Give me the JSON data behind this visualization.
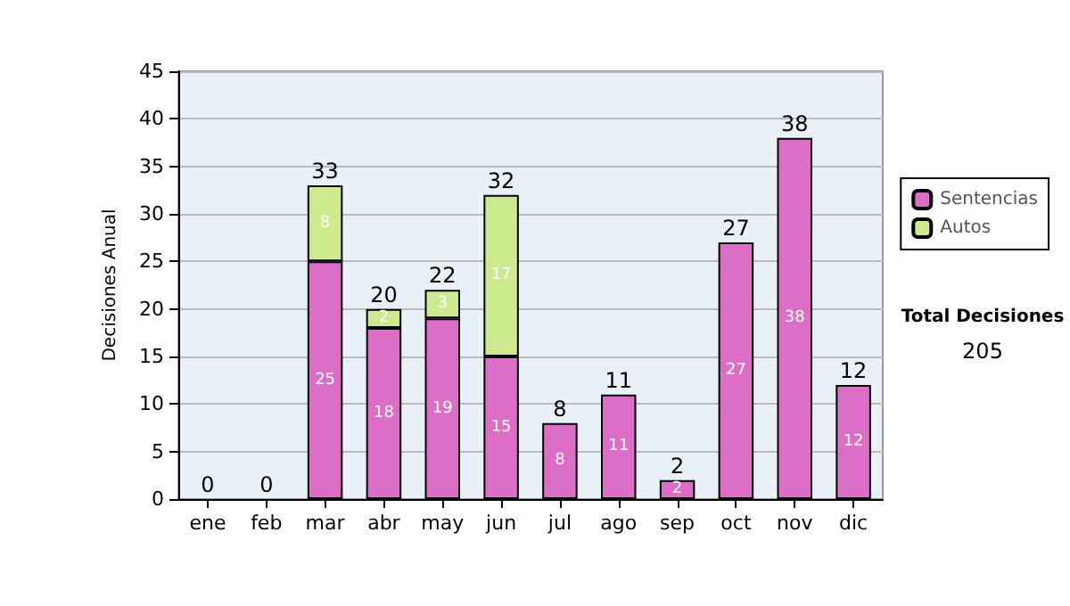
{
  "chart_data": {
    "type": "bar",
    "stacked": true,
    "ylabel": "Decisiones Anual",
    "categories": [
      "ene",
      "feb",
      "mar",
      "abr",
      "may",
      "jun",
      "jul",
      "ago",
      "sep",
      "oct",
      "nov",
      "dic"
    ],
    "series": [
      {
        "name": "Sentencias",
        "color": "#dd6ec8",
        "values": [
          0,
          0,
          25,
          18,
          19,
          15,
          8,
          11,
          2,
          27,
          38,
          12
        ],
        "value_labels": [
          null,
          null,
          "25",
          "18",
          "19",
          "15",
          "8",
          "11",
          "2",
          "27",
          "38",
          "12"
        ]
      },
      {
        "name": "Autos",
        "color": "#cdea8f",
        "values": [
          0,
          0,
          8,
          2,
          3,
          17,
          0,
          0,
          0,
          0,
          0,
          0
        ],
        "value_labels": [
          null,
          null,
          "8",
          "2",
          "3",
          "17",
          null,
          null,
          null,
          null,
          null,
          null
        ]
      }
    ],
    "totals": [
      "0",
      "0",
      "33",
      "20",
      "22",
      "32",
      "8",
      "11",
      "2",
      "27",
      "38",
      "12"
    ],
    "ylim": [
      0,
      45
    ],
    "yticks": [
      0,
      5,
      10,
      15,
      20,
      25,
      30,
      35,
      40,
      45
    ],
    "grid": "y",
    "legend": "right",
    "annotations": [
      "Total Decisiones",
      "205"
    ]
  }
}
